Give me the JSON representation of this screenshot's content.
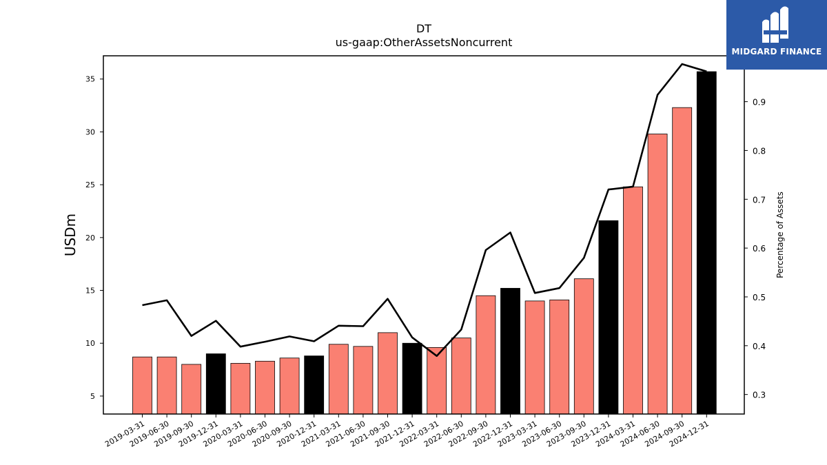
{
  "chart_data": {
    "type": "bar",
    "title": "DT",
    "subtitle": "us-gaap:OtherAssetsNoncurrent",
    "ylabel": "USDm",
    "y2label": "Percentage of Assets",
    "ylim": [
      3.3,
      37.2
    ],
    "y2lim": [
      0.26,
      0.994
    ],
    "yticks": [
      5,
      10,
      15,
      20,
      25,
      30,
      35
    ],
    "y2ticks": [
      0.3,
      0.4,
      0.5,
      0.6,
      0.7,
      0.8,
      0.9
    ],
    "y2tick_labels": [
      "0.3",
      "0.4",
      "0.5",
      "0.6",
      "0.7",
      "0.8",
      "0.9"
    ],
    "categories": [
      "2019-03-31",
      "2019-06-30",
      "2019-09-30",
      "2019-12-31",
      "2020-03-31",
      "2020-06-30",
      "2020-09-30",
      "2020-12-31",
      "2021-03-31",
      "2021-06-30",
      "2021-09-30",
      "2021-12-31",
      "2022-03-31",
      "2022-06-30",
      "2022-09-30",
      "2022-12-31",
      "2023-03-31",
      "2023-06-30",
      "2023-09-30",
      "2023-12-31",
      "2024-03-31",
      "2024-06-30",
      "2024-09-30",
      "2024-12-31"
    ],
    "series": [
      {
        "type": "bar",
        "values": [
          8.7,
          8.7,
          8.0,
          9.0,
          8.1,
          8.3,
          8.6,
          8.8,
          9.9,
          9.7,
          11.0,
          10.0,
          9.6,
          10.5,
          14.5,
          15.2,
          14.0,
          14.1,
          16.1,
          21.6,
          24.8,
          29.8,
          32.3,
          35.7
        ],
        "colors": [
          "#fa8072",
          "#fa8072",
          "#fa8072",
          "#000000",
          "#fa8072",
          "#fa8072",
          "#fa8072",
          "#000000",
          "#fa8072",
          "#fa8072",
          "#fa8072",
          "#000000",
          "#fa8072",
          "#fa8072",
          "#fa8072",
          "#000000",
          "#fa8072",
          "#fa8072",
          "#fa8072",
          "#000000",
          "#fa8072",
          "#fa8072",
          "#fa8072",
          "#000000"
        ]
      },
      {
        "type": "line",
        "axis": "right",
        "color": "#000000",
        "values": [
          0.483,
          0.493,
          0.42,
          0.451,
          0.398,
          0.408,
          0.419,
          0.409,
          0.441,
          0.44,
          0.496,
          0.417,
          0.379,
          0.433,
          0.596,
          0.632,
          0.508,
          0.518,
          0.58,
          0.72,
          0.726,
          0.914,
          0.977,
          0.962
        ]
      }
    ],
    "grid": false,
    "legend": "none"
  },
  "logo": {
    "text": "MIDGARD FINANCE",
    "icon": "midgard-logo-icon",
    "bg": "#2c5aa8"
  }
}
